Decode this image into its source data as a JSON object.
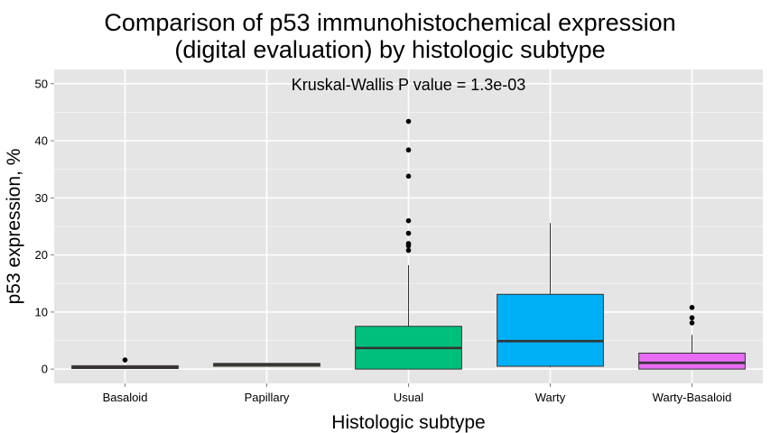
{
  "chart_data": {
    "type": "boxplot",
    "title_lines": [
      "Comparison of p53 immunohistochemical expression",
      "(digital evaluation) by histologic subtype"
    ],
    "xlabel": "Histologic subtype",
    "ylabel": "p53 expression, %",
    "annotation": "Kruskal-Wallis P value = 1.3e-03",
    "ylim": [
      -2.5,
      52.5
    ],
    "yticks": [
      0,
      10,
      20,
      30,
      40,
      50
    ],
    "grid": true,
    "legend": "none",
    "categories": [
      "Basaloid",
      "Papillary",
      "Usual",
      "Warty",
      "Warty-Basaloid"
    ],
    "boxes": [
      {
        "name": "Basaloid",
        "color": "#f8766d",
        "whisker_low": 0.0,
        "q1": 0.1,
        "median": 0.3,
        "q3": 0.6,
        "whisker_high": 0.6,
        "outliers": [
          1.6
        ]
      },
      {
        "name": "Papillary",
        "color": "#a3a500",
        "whisker_low": 0.5,
        "q1": 0.5,
        "median": 0.8,
        "q3": 1.0,
        "whisker_high": 1.0,
        "outliers": []
      },
      {
        "name": "Usual",
        "color": "#00bf7d",
        "whisker_low": 0.0,
        "q1": 0.0,
        "median": 3.7,
        "q3": 7.5,
        "whisker_high": 18.2,
        "outliers": [
          20.8,
          21.6,
          22.0,
          23.8,
          26.0,
          33.8,
          38.4,
          43.4
        ]
      },
      {
        "name": "Warty",
        "color": "#00b0f6",
        "whisker_low": 0.3,
        "q1": 0.5,
        "median": 4.9,
        "q3": 13.1,
        "whisker_high": 25.6,
        "outliers": []
      },
      {
        "name": "Warty-Basaloid",
        "color": "#e76bf3",
        "whisker_low": 0.0,
        "q1": 0.0,
        "median": 1.1,
        "q3": 2.8,
        "whisker_high": 6.0,
        "outliers": [
          8.1,
          9.0,
          10.8
        ]
      }
    ]
  }
}
